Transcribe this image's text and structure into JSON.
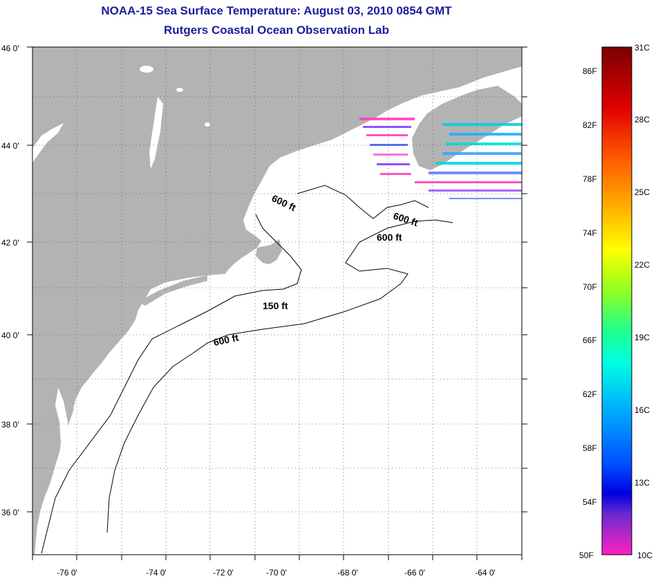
{
  "title": {
    "line1": "NOAA-15 Sea Surface Temperature:  August 03, 2010 0854 GMT",
    "line2": "Rutgers Coastal Ocean Observation Lab"
  },
  "map": {
    "lat_labels": [
      "46 0'",
      "44 0'",
      "42 0'",
      "40 0'",
      "38 0'",
      "36 0'"
    ],
    "lon_labels": [
      "-76 0'",
      "-74 0'",
      "-72 0'",
      "-70 0'",
      "-68 0'",
      "-66 0'",
      "-64 0'"
    ],
    "contour_labels": [
      "600 ft",
      "600 ft",
      "600 ft",
      "150 ft",
      "600 ft"
    ],
    "colors": {
      "land": "#b3b3b3",
      "ocean": "#ffffff",
      "grid": "#555555"
    }
  },
  "colorbar": {
    "fahrenheit": [
      "86F",
      "82F",
      "78F",
      "74F",
      "70F",
      "66F",
      "62F",
      "58F",
      "54F",
      "50F"
    ],
    "celsius": [
      "31C",
      "28C",
      "25C",
      "22C",
      "19C",
      "16C",
      "13C",
      "10C"
    ]
  }
}
